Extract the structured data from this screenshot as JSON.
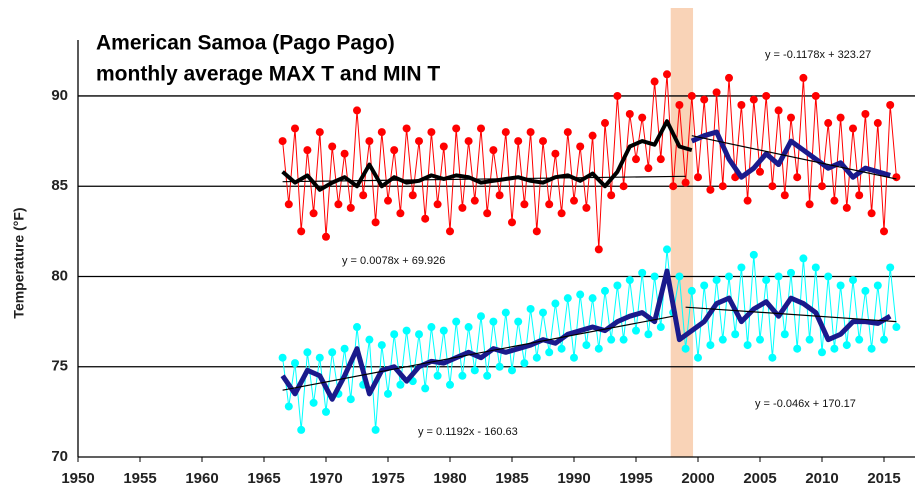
{
  "chart_data": {
    "type": "line",
    "title": [
      "American Samoa (Pago Pago)",
      "monthly average MAX T and MIN T"
    ],
    "y_label": "Temperature (°F)",
    "xlim": [
      1950,
      2017.5
    ],
    "ylim": [
      70,
      93.1
    ],
    "xticks": [
      1950,
      1955,
      1960,
      1965,
      1970,
      1975,
      1980,
      1985,
      1990,
      1995,
      2000,
      2005,
      2010,
      2015
    ],
    "yticks": [
      70,
      75,
      80,
      85,
      90
    ],
    "grid": true,
    "highlight": {
      "x": [
        1997.8,
        1999.6
      ],
      "color": "#f9d3b7"
    },
    "annotations": [
      "y = -0.1178x + 323.27",
      "y = 0.0078x + 69.926",
      "y = -0.046x + 170.17",
      "y = 0.1192x - 160.63"
    ],
    "series": [
      {
        "color": "#ff0000",
        "marker": true,
        "line_width": 1,
        "x": [
          1966.5,
          1967,
          1967.5,
          1968,
          1968.5,
          1969,
          1969.5,
          1970,
          1970.5,
          1971,
          1971.5,
          1972,
          1972.5,
          1973,
          1973.5,
          1974,
          1974.5,
          1975,
          1975.5,
          1976,
          1976.5,
          1977,
          1977.5,
          1978,
          1978.5,
          1979,
          1979.5,
          1980,
          1980.5,
          1981,
          1981.5,
          1982,
          1982.5,
          1983,
          1983.5,
          1984,
          1984.5,
          1985,
          1985.5,
          1986,
          1986.5,
          1987,
          1987.5,
          1988,
          1988.5,
          1989,
          1989.5,
          1990,
          1990.5,
          1991,
          1991.5,
          1992,
          1992.5,
          1993,
          1993.5,
          1994,
          1994.5,
          1995,
          1995.5,
          1996,
          1996.5,
          1997,
          1997.5,
          1998,
          1998.5,
          1999,
          1999.5,
          2000,
          2000.5,
          2001,
          2001.5,
          2002,
          2002.5,
          2003,
          2003.5,
          2004,
          2004.5,
          2005,
          2005.5,
          2006,
          2006.5,
          2007,
          2007.5,
          2008,
          2008.5,
          2009,
          2009.5,
          2010,
          2010.5,
          2011,
          2011.5,
          2012,
          2012.5,
          2013,
          2013.5,
          2014,
          2014.5,
          2015,
          2015.5,
          2016
        ],
        "values": [
          87.5,
          84.0,
          88.2,
          82.5,
          87.0,
          83.5,
          88.0,
          82.2,
          87.2,
          84.0,
          86.8,
          83.8,
          89.2,
          84.5,
          87.5,
          83.0,
          88.0,
          84.2,
          87.0,
          83.5,
          88.2,
          84.5,
          87.5,
          83.2,
          88.0,
          84.0,
          87.2,
          82.5,
          88.2,
          83.8,
          87.5,
          84.2,
          88.2,
          83.5,
          87.0,
          84.5,
          88.0,
          83.0,
          87.5,
          84.0,
          88.0,
          82.5,
          87.5,
          84.0,
          86.8,
          83.5,
          88.0,
          84.2,
          87.2,
          83.8,
          87.8,
          81.5,
          88.5,
          84.5,
          90.0,
          85.0,
          89.0,
          86.5,
          88.8,
          86.0,
          90.8,
          86.5,
          91.2,
          85.0,
          89.5,
          85.2,
          90.0,
          85.5,
          89.8,
          84.8,
          90.2,
          85.0,
          91.0,
          85.5,
          89.5,
          84.2,
          89.8,
          85.8,
          90.0,
          85.0,
          89.2,
          84.5,
          88.8,
          85.5,
          91.0,
          84.0,
          90.0,
          85.0,
          88.5,
          84.2,
          88.8,
          83.8,
          88.2,
          84.5,
          89.0,
          83.5,
          88.5,
          82.5,
          89.5,
          85.5
        ]
      },
      {
        "color": "#00ffff",
        "marker": true,
        "line_width": 1,
        "x": [
          1966.5,
          1967,
          1967.5,
          1968,
          1968.5,
          1969,
          1969.5,
          1970,
          1970.5,
          1971,
          1971.5,
          1972,
          1972.5,
          1973,
          1973.5,
          1974,
          1974.5,
          1975,
          1975.5,
          1976,
          1976.5,
          1977,
          1977.5,
          1978,
          1978.5,
          1979,
          1979.5,
          1980,
          1980.5,
          1981,
          1981.5,
          1982,
          1982.5,
          1983,
          1983.5,
          1984,
          1984.5,
          1985,
          1985.5,
          1986,
          1986.5,
          1987,
          1987.5,
          1988,
          1988.5,
          1989,
          1989.5,
          1990,
          1990.5,
          1991,
          1991.5,
          1992,
          1992.5,
          1993,
          1993.5,
          1994,
          1994.5,
          1995,
          1995.5,
          1996,
          1996.5,
          1997,
          1997.5,
          1998,
          1998.5,
          1999,
          1999.5,
          2000,
          2000.5,
          2001,
          2001.5,
          2002,
          2002.5,
          2003,
          2003.5,
          2004,
          2004.5,
          2005,
          2005.5,
          2006,
          2006.5,
          2007,
          2007.5,
          2008,
          2008.5,
          2009,
          2009.5,
          2010,
          2010.5,
          2011,
          2011.5,
          2012,
          2012.5,
          2013,
          2013.5,
          2014,
          2014.5,
          2015,
          2015.5,
          2016
        ],
        "values": [
          75.5,
          72.8,
          75.2,
          71.5,
          75.8,
          73.0,
          75.5,
          72.5,
          75.8,
          73.5,
          76.0,
          73.2,
          77.2,
          74.0,
          76.5,
          71.5,
          76.2,
          73.5,
          76.8,
          74.0,
          77.0,
          74.2,
          76.8,
          73.8,
          77.2,
          74.5,
          77.0,
          74.0,
          77.5,
          74.5,
          77.2,
          74.8,
          77.8,
          74.5,
          77.5,
          75.0,
          78.0,
          74.8,
          77.5,
          75.2,
          78.2,
          75.5,
          78.0,
          75.8,
          78.5,
          76.0,
          78.8,
          75.5,
          79.0,
          76.2,
          78.8,
          76.0,
          79.2,
          76.5,
          79.5,
          76.5,
          79.8,
          77.0,
          80.2,
          76.8,
          80.0,
          77.2,
          81.5,
          78.0,
          80.0,
          76.0,
          79.2,
          75.5,
          79.5,
          76.2,
          79.8,
          76.5,
          80.0,
          76.8,
          80.5,
          76.2,
          81.2,
          76.5,
          79.8,
          75.5,
          80.0,
          76.8,
          80.2,
          76.0,
          81.0,
          76.5,
          80.5,
          75.8,
          80.0,
          76.0,
          79.5,
          76.2,
          79.8,
          76.5,
          79.2,
          76.0,
          79.5,
          76.5,
          80.5,
          77.2
        ]
      },
      {
        "color": "#000000",
        "marker": false,
        "line_width": 4,
        "x": [
          1966.5,
          1967.5,
          1968.5,
          1969.5,
          1970.5,
          1971.5,
          1972.5,
          1973.5,
          1974.5,
          1975.5,
          1976.5,
          1977.5,
          1978.5,
          1979.5,
          1980.5,
          1981.5,
          1982.5,
          1983.5,
          1984.5,
          1985.5,
          1986.5,
          1987.5,
          1988.5,
          1989.5,
          1990.5,
          1991.5,
          1992.5,
          1993.5,
          1994.5,
          1995.5,
          1996.5,
          1997.5,
          1998.5,
          1999.5
        ],
        "values": [
          85.8,
          85.2,
          85.6,
          84.8,
          85.2,
          85.5,
          85.0,
          86.2,
          85.0,
          85.5,
          85.2,
          85.3,
          85.6,
          85.4,
          85.6,
          85.5,
          85.2,
          85.3,
          85.4,
          85.5,
          85.3,
          85.2,
          85.5,
          85.6,
          85.3,
          85.7,
          85.0,
          85.8,
          87.2,
          87.5,
          87.3,
          88.6,
          87.2,
          87.0
        ]
      },
      {
        "color": "#1a1a8c",
        "marker": false,
        "line_width": 5,
        "x": [
          1999.5,
          2000.5,
          2001.5,
          2002.5,
          2003.5,
          2004.5,
          2005.5,
          2006.5,
          2007.5,
          2008.5,
          2009.5,
          2010.5,
          2011.5,
          2012.5,
          2013.5,
          2014.5,
          2015.5
        ],
        "values": [
          87.5,
          87.8,
          88.0,
          86.5,
          85.5,
          86.0,
          86.8,
          86.2,
          87.5,
          87.0,
          86.5,
          86.0,
          86.3,
          85.5,
          86.0,
          85.8,
          85.6
        ]
      },
      {
        "color": "#1a1a8c",
        "marker": false,
        "line_width": 5,
        "x": [
          1966.5,
          1967.5,
          1968.5,
          1969.5,
          1970.5,
          1971.5,
          1972.5,
          1973.5,
          1974.5,
          1975.5,
          1976.5,
          1977.5,
          1978.5,
          1979.5,
          1980.5,
          1981.5,
          1982.5,
          1983.5,
          1984.5,
          1985.5,
          1986.5,
          1987.5,
          1988.5,
          1989.5,
          1990.5,
          1991.5,
          1992.5,
          1993.5,
          1994.5,
          1995.5,
          1996.5,
          1997.5,
          1998.5,
          1999.5,
          2000.5,
          2001.5,
          2002.5,
          2003.5,
          2004.5,
          2005.5,
          2006.5,
          2007.5,
          2008.5,
          2009.5,
          2010.5,
          2011.5,
          2012.5,
          2013.5,
          2014.5,
          2015.5
        ],
        "values": [
          74.5,
          73.5,
          74.8,
          74.5,
          73.2,
          74.5,
          76.0,
          73.5,
          74.8,
          75.0,
          74.2,
          75.0,
          75.3,
          75.2,
          75.5,
          75.8,
          75.5,
          76.0,
          75.8,
          76.0,
          76.2,
          76.5,
          76.3,
          76.8,
          77.0,
          77.2,
          77.0,
          77.5,
          77.8,
          78.0,
          77.5,
          80.3,
          76.5,
          77.0,
          77.5,
          78.5,
          78.8,
          77.5,
          78.2,
          78.6,
          77.8,
          78.8,
          78.5,
          78.0,
          76.5,
          76.8,
          77.5,
          77.5,
          77.4,
          77.8
        ]
      },
      {
        "color": "#000000",
        "marker": false,
        "line_width": 1.2,
        "x": [
          1966.5,
          1999
        ],
        "values": [
          85.25,
          85.55
        ]
      },
      {
        "color": "#000000",
        "marker": false,
        "line_width": 1.2,
        "x": [
          1999.5,
          2016
        ],
        "values": [
          87.8,
          85.4
        ]
      },
      {
        "color": "#000000",
        "marker": false,
        "line_width": 1.2,
        "x": [
          1966.5,
          1998
        ],
        "values": [
          73.7,
          77.8
        ]
      },
      {
        "color": "#000000",
        "marker": false,
        "line_width": 1.2,
        "x": [
          1999,
          2016
        ],
        "values": [
          78.3,
          77.5
        ]
      }
    ]
  }
}
